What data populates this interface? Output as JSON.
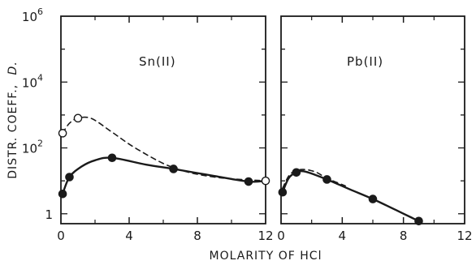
{
  "chart_data": [
    {
      "type": "line",
      "panel_label": "Sn(II)",
      "ylabel_text": "DISTR. COEFF.,",
      "ylabel_symbol": "D.",
      "yscale": "log",
      "ylim": [
        0.5,
        1000000
      ],
      "xlim": [
        0,
        12
      ],
      "x_ticks": [
        0,
        4,
        8,
        12
      ],
      "x_tick_labels": [
        "0",
        "4",
        "8",
        "12"
      ],
      "y_ticks": [
        1,
        100,
        10000,
        1000000
      ],
      "y_tick_labels": [
        {
          "base": "1",
          "exp": ""
        },
        {
          "base": "10",
          "exp": "2"
        },
        {
          "base": "10",
          "exp": "4"
        },
        {
          "base": "10",
          "exp": "6"
        }
      ],
      "series": [
        {
          "style": "solid-filled",
          "points": [
            [
              0.1,
              4
            ],
            [
              0.5,
              13
            ],
            [
              3,
              50
            ],
            [
              6.6,
              23
            ],
            [
              11,
              9.5
            ]
          ],
          "curve": [
            [
              0.1,
              4
            ],
            [
              0.5,
              13
            ],
            [
              1.2,
              27
            ],
            [
              2,
              42
            ],
            [
              3,
              50
            ],
            [
              5,
              31
            ],
            [
              6.6,
              23
            ],
            [
              9,
              14
            ],
            [
              11,
              9.5
            ],
            [
              12,
              10
            ]
          ]
        },
        {
          "style": "dashed-open",
          "points": [
            [
              0.1,
              280
            ],
            [
              1,
              800
            ],
            [
              12,
              10
            ]
          ],
          "curve": [
            [
              0.1,
              280
            ],
            [
              0.5,
              560
            ],
            [
              1,
              800
            ],
            [
              1.8,
              780
            ],
            [
              3,
              300
            ],
            [
              4.5,
              90
            ],
            [
              6.6,
              25
            ],
            [
              9,
              13
            ],
            [
              12,
              10
            ]
          ]
        }
      ]
    },
    {
      "type": "line",
      "panel_label": "Pb(II)",
      "yscale": "log",
      "ylim": [
        0.5,
        1000000
      ],
      "xlim": [
        0,
        12
      ],
      "x_ticks": [
        0,
        4,
        8,
        12
      ],
      "x_tick_labels": [
        "0",
        "4",
        "8",
        "12"
      ],
      "xlabel": "MOLARITY OF HCl",
      "series": [
        {
          "style": "solid-filled",
          "points": [
            [
              0.1,
              4.5
            ],
            [
              1,
              18
            ],
            [
              3,
              11
            ],
            [
              6,
              2.8
            ],
            [
              9,
              0.6
            ]
          ],
          "curve": [
            [
              0.1,
              4.5
            ],
            [
              0.5,
              12
            ],
            [
              1,
              18
            ],
            [
              1.6,
              19
            ],
            [
              3,
              11
            ],
            [
              4.5,
              5.5
            ],
            [
              6,
              2.8
            ],
            [
              7.5,
              1.3
            ],
            [
              9,
              0.6
            ]
          ]
        },
        {
          "style": "dashed",
          "points": [],
          "curve": [
            [
              0.1,
              6
            ],
            [
              0.6,
              16
            ],
            [
              1.3,
              22
            ],
            [
              2.2,
              19
            ],
            [
              3,
              12
            ],
            [
              4.2,
              7
            ]
          ]
        }
      ]
    }
  ]
}
